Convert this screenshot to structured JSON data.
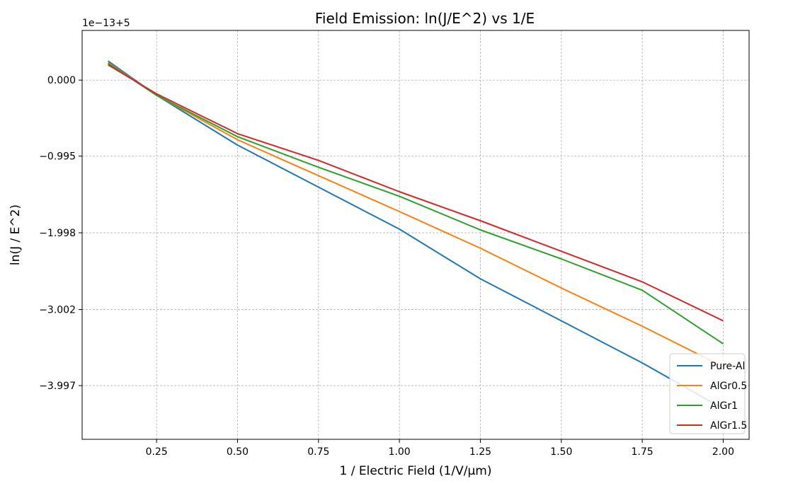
{
  "chart_data": {
    "type": "line",
    "title": "Field Emission: ln(J/E^2) vs 1/E",
    "xlabel": "1 / Electric Field (1/V/μm)",
    "ylabel": "ln(J / E^2)",
    "offset_label": "1e−13+5",
    "xlim": [
      0.02,
      2.08
    ],
    "ylim": [
      -4.7,
      0.65
    ],
    "x_ticks": [
      0.25,
      0.5,
      0.75,
      1.0,
      1.25,
      1.5,
      1.75,
      2.0
    ],
    "x_tick_labels": [
      "0.25",
      "0.50",
      "0.75",
      "1.00",
      "1.25",
      "1.50",
      "1.75",
      "2.00"
    ],
    "y_ticks": [
      0.0,
      -0.995,
      -1.998,
      -3.002,
      -3.997
    ],
    "y_tick_labels": [
      "0.000",
      "−0.995",
      "−1.998",
      "−3.002",
      "−3.997"
    ],
    "grid": true,
    "legend_position": "bottom-right",
    "x": [
      0.1,
      0.25,
      0.5,
      0.75,
      1.0,
      1.25,
      1.5,
      1.75,
      2.0
    ],
    "series": [
      {
        "name": "Pure-Al",
        "color": "#1f77b4",
        "values": [
          0.25,
          -0.2,
          -0.85,
          -1.4,
          -1.95,
          -2.6,
          -3.15,
          -3.7,
          -4.3
        ]
      },
      {
        "name": "AlGr0.5",
        "color": "#ff7f0e",
        "values": [
          0.23,
          -0.2,
          -0.78,
          -1.25,
          -1.72,
          -2.2,
          -2.72,
          -3.22,
          -3.75
        ]
      },
      {
        "name": "AlGr1",
        "color": "#2ca02c",
        "values": [
          0.22,
          -0.2,
          -0.74,
          -1.14,
          -1.52,
          -1.96,
          -2.34,
          -2.75,
          -3.45
        ]
      },
      {
        "name": "AlGr1.5",
        "color": "#d62728",
        "values": [
          0.2,
          -0.18,
          -0.7,
          -1.05,
          -1.46,
          -1.84,
          -2.24,
          -2.64,
          -3.15
        ]
      }
    ]
  }
}
